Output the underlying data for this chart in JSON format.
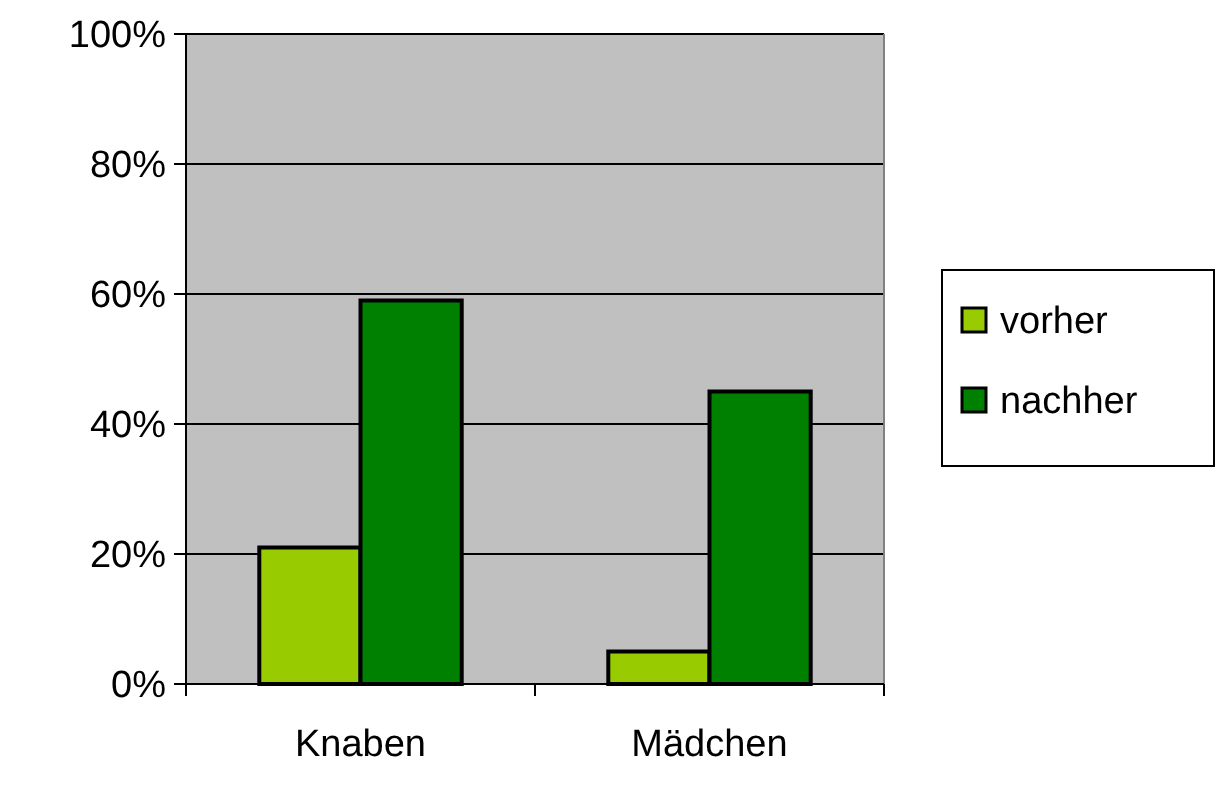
{
  "chart_data": {
    "type": "bar",
    "categories": [
      "Knaben",
      "Mädchen"
    ],
    "series": [
      {
        "name": "vorher",
        "color": "#99cc00",
        "values": [
          21,
          5
        ]
      },
      {
        "name": "nachher",
        "color": "#008000",
        "values": [
          59,
          45
        ]
      }
    ],
    "ylim": [
      0,
      100
    ],
    "yticks": [
      {
        "value": 0,
        "label": "0%"
      },
      {
        "value": 20,
        "label": "20%"
      },
      {
        "value": 40,
        "label": "40%"
      },
      {
        "value": 60,
        "label": "60%"
      },
      {
        "value": 80,
        "label": "80%"
      },
      {
        "value": 100,
        "label": "100%"
      }
    ],
    "grid": "y",
    "legend": "right"
  }
}
